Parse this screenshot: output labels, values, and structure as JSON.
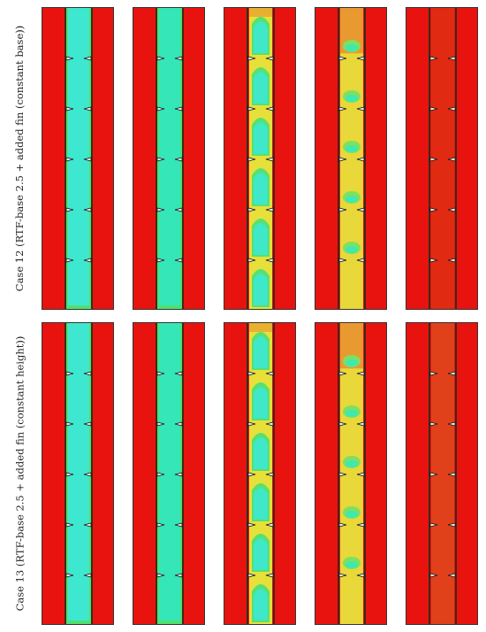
{
  "figure": {
    "rows": [
      {
        "label": "Case 12 (RTF-base 2.5 + added fin (constant base))",
        "panels": [
          {
            "liquid_fraction": 0.0,
            "channel_color": "#3ee8d0",
            "state": "solid"
          },
          {
            "liquid_fraction": 0.15,
            "channel_color": "#35e6b8",
            "state": "melting-edges"
          },
          {
            "liquid_fraction": 0.55,
            "channel_color": "#c8e83a",
            "state": "domes"
          },
          {
            "liquid_fraction": 0.8,
            "channel_color": "#e8e03a",
            "state": "mostly-melted"
          },
          {
            "liquid_fraction": 1.0,
            "channel_color": "#e02a12",
            "state": "fully-melted"
          }
        ]
      },
      {
        "label": "Case 13 (RTF-base 2.5 + added fin (constant height))",
        "panels": [
          {
            "liquid_fraction": 0.0,
            "channel_color": "#3ee8d0",
            "state": "solid"
          },
          {
            "liquid_fraction": 0.15,
            "channel_color": "#35e6b8",
            "state": "melting-edges"
          },
          {
            "liquid_fraction": 0.55,
            "channel_color": "#c8e83a",
            "state": "domes"
          },
          {
            "liquid_fraction": 0.75,
            "channel_color": "#e8e03a",
            "state": "mostly-melted"
          },
          {
            "liquid_fraction": 1.0,
            "channel_color": "#e0401a",
            "state": "fully-melted"
          }
        ]
      }
    ],
    "colors": {
      "background_red": "#e8130f",
      "wall": "#3a2a1a",
      "solid": "#3ee8d0",
      "liquid": "#e8130f",
      "mushy": "#e8e03a"
    }
  }
}
